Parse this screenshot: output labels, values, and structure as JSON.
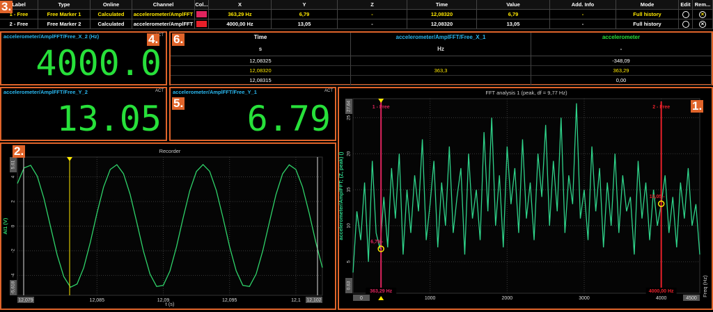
{
  "callouts": [
    "1.",
    "2.",
    "3.",
    "4.",
    "5.",
    "6."
  ],
  "markers_table": {
    "columns": [
      "Label",
      "Type",
      "Online",
      "Channel",
      "Col...",
      "X",
      "Y",
      "Z",
      "Time",
      "Value",
      "Add. Info",
      "Mode",
      "Edit",
      "Rem..."
    ],
    "rows": [
      [
        "1 - Free",
        "Free Marker 1",
        "Calculated",
        "accelerometer/AmplFFT",
        "363,29 Hz",
        "6,79",
        "-",
        "12,08320",
        "6,79",
        "-",
        "Full history"
      ],
      [
        "2 - Free",
        "Free Marker 2",
        "Calculated",
        "accelerometer/AmplFFT",
        "4000,00 Hz",
        "13,05",
        "-",
        "12,08320",
        "13,05",
        "-",
        "Full history"
      ]
    ],
    "colors": [
      "#e0245e",
      "#e8202a"
    ]
  },
  "displays": [
    {
      "title": "accelerometer/AmplFFT/Free_X_2 (Hz)",
      "badge": "ACT",
      "value": "4000.0"
    },
    {
      "title": "accelerometer/AmplFFT/Free_Y_2",
      "badge": "ACT",
      "value": "13.05"
    },
    {
      "title": "accelerometer/AmplFFT/Free_Y_1",
      "badge": "ACT",
      "value": "6.79"
    }
  ],
  "values_table": {
    "columns": [
      "Time",
      "accelerometer/AmplFFT/Free_X_1",
      "accelerometer"
    ],
    "units": [
      "s",
      "Hz",
      "-"
    ],
    "rows": [
      [
        "12,08325",
        null,
        "-348,09"
      ],
      [
        "12,08320",
        "363,3",
        "363,29"
      ],
      [
        "12,08315",
        null,
        "0,00"
      ]
    ]
  },
  "chart_data": [
    {
      "type": "line",
      "title": "Recorder",
      "y_label": "AI1 (V)",
      "x_label": "t (s)",
      "color": "#2fd36a",
      "grid": true,
      "xlim": [
        12.079,
        12.102
      ],
      "xticks": [
        {
          "value": 12.079,
          "label": "12,079"
        },
        {
          "value": 12.085,
          "label": "12,085"
        },
        {
          "value": 12.09,
          "label": "12,09"
        },
        {
          "value": 12.095,
          "label": "12,095"
        },
        {
          "value": 12.1,
          "label": "12,1"
        },
        {
          "value": 12.102,
          "label": "12,102"
        }
      ],
      "ylim": [
        -5.618,
        5.61
      ],
      "yticks": [
        {
          "value": -5.618,
          "label": "-5,618"
        },
        -4,
        -2,
        0,
        2,
        4,
        {
          "value": 5.61,
          "label": "5,61"
        }
      ],
      "x": [
        12.079,
        12.0795,
        12.08,
        12.0805,
        12.081,
        12.0815,
        12.082,
        12.0825,
        12.083,
        12.0835,
        12.084,
        12.0845,
        12.085,
        12.0855,
        12.086,
        12.0865,
        12.087,
        12.0875,
        12.088,
        12.0885,
        12.089,
        12.0895,
        12.09,
        12.0905,
        12.091,
        12.0915,
        12.092,
        12.0925,
        12.093,
        12.0935,
        12.094,
        12.0945,
        12.095,
        12.0955,
        12.096,
        12.0965,
        12.097,
        12.0975,
        12.098,
        12.0985,
        12.099,
        12.0995,
        12.1,
        12.1005,
        12.101,
        12.1015,
        12.102
      ],
      "values": [
        3.46,
        4.73,
        4.94,
        4.05,
        2.25,
        -0.05,
        -2.34,
        -4.11,
        -4.96,
        -4.7,
        -3.38,
        -1.31,
        1.05,
        3.18,
        4.6,
        4.99,
        4.26,
        2.58,
        0.32,
        -2.01,
        -3.89,
        -4.9,
        -4.81,
        -3.65,
        -1.67,
        0.68,
        2.88,
        4.44,
        5.0,
        4.45,
        2.9,
        0.7,
        -1.65,
        -3.63,
        -4.81,
        -4.9,
        -3.9,
        -2.02,
        0.3,
        2.56,
        4.25,
        4.98,
        4.6,
        3.19,
        1.07,
        -1.29,
        -3.37
      ]
    },
    {
      "type": "line",
      "title": "FFT analysis 1 (peak, df = 9,77 Hz)",
      "y_label": "accelerometer/AmplFFT; (Z, peak) ()",
      "x_label": "Freq (Hz)",
      "color": "#2fd38a",
      "grid": true,
      "xlim": [
        0,
        4500
      ],
      "xticks": [
        0,
        1000,
        2000,
        3000,
        4000,
        4500
      ],
      "ylim": [
        0.63,
        27.64
      ],
      "yticks": [
        {
          "value": 0.63,
          "label": "0,63"
        },
        5,
        10,
        15,
        20,
        25,
        {
          "value": 27.64,
          "label": "27,64"
        }
      ],
      "x": [
        0,
        50,
        100,
        150,
        200,
        250,
        300,
        350,
        400,
        450,
        500,
        550,
        600,
        650,
        700,
        750,
        800,
        850,
        900,
        950,
        1000,
        1050,
        1100,
        1150,
        1200,
        1250,
        1300,
        1350,
        1400,
        1450,
        1500,
        1550,
        1600,
        1650,
        1700,
        1750,
        1800,
        1850,
        1900,
        1950,
        2000,
        2050,
        2100,
        2150,
        2200,
        2250,
        2300,
        2350,
        2400,
        2450,
        2500,
        2550,
        2600,
        2650,
        2700,
        2750,
        2800,
        2850,
        2900,
        2950,
        3000,
        3050,
        3100,
        3150,
        3200,
        3250,
        3300,
        3350,
        3400,
        3450,
        3500,
        3550,
        3600,
        3650,
        3700,
        3750,
        3800,
        3850,
        3900,
        3950,
        4000,
        4050,
        4100,
        4150,
        4200,
        4250,
        4300,
        4350,
        4400,
        4450,
        4500
      ],
      "values": [
        3.5,
        12,
        8,
        16,
        5,
        19,
        9,
        6.8,
        14,
        7,
        18,
        11,
        20,
        6,
        15,
        9,
        17,
        12,
        22,
        8,
        13,
        19,
        7,
        16,
        10,
        21,
        9,
        14,
        18,
        6,
        20,
        11,
        15,
        8,
        23,
        12,
        25,
        10,
        17,
        7,
        21,
        13,
        18,
        9,
        22,
        11,
        16,
        8,
        20,
        14,
        24,
        10,
        19,
        12,
        25,
        9,
        17,
        13,
        27,
        11,
        15,
        8,
        21,
        12,
        18,
        7,
        16,
        10,
        20,
        9,
        17,
        12,
        14,
        6,
        19,
        11,
        16,
        8,
        15,
        10,
        13.05,
        17,
        9,
        14,
        7,
        16,
        11,
        18,
        10,
        13,
        6
      ],
      "markers": [
        {
          "label": "1 - Free",
          "x": 363.29,
          "x_label": "363,29 Hz",
          "y": 6.79,
          "y_label": "6,79 -",
          "color": "#e0245e"
        },
        {
          "label": "2 - Free",
          "x": 4000,
          "x_label": "4000,00 Hz",
          "y": 13.05,
          "y_label": "13,05 -",
          "color": "#e8202a"
        }
      ]
    }
  ]
}
